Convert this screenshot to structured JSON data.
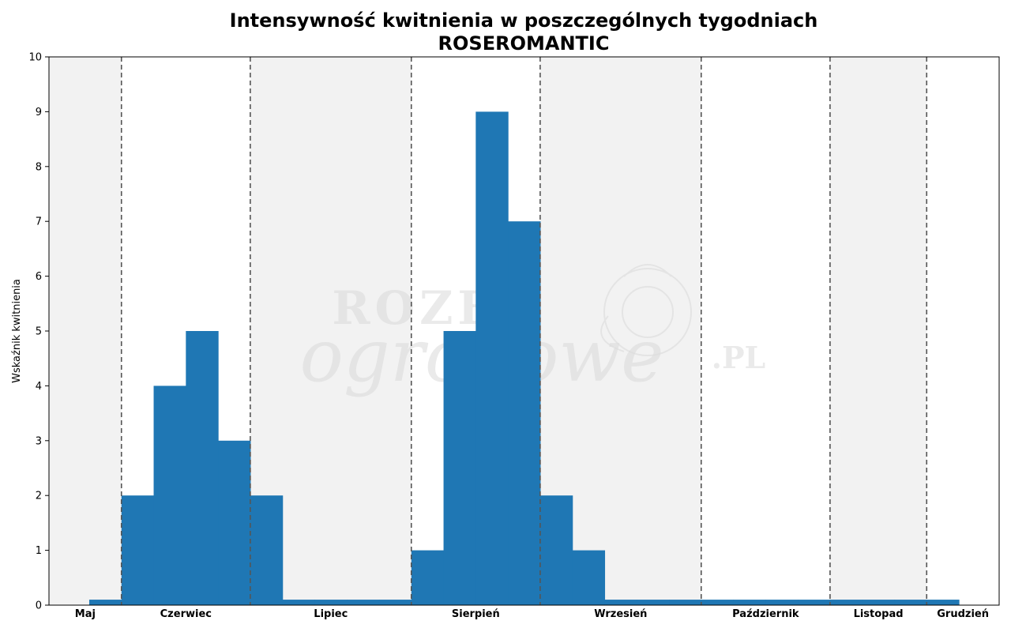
{
  "chart_data": {
    "type": "bar",
    "title_line1": "Intensywność kwitnienia w poszczególnych tygodniach",
    "title_line2": "ROSEROMANTIC",
    "xlabel": "",
    "ylabel": "Wskaźnik kwitnienia",
    "ylim": [
      0,
      10
    ],
    "yticks": [
      0,
      1,
      2,
      3,
      4,
      5,
      6,
      7,
      8,
      9,
      10
    ],
    "grid": false,
    "week_range": [
      0,
      29.5
    ],
    "months": [
      {
        "name": "Maj",
        "start_week": 0,
        "end_week": 2.25,
        "shaded": true
      },
      {
        "name": "Czerwiec",
        "start_week": 2.25,
        "end_week": 6.25,
        "shaded": false
      },
      {
        "name": "Lipiec",
        "start_week": 6.25,
        "end_week": 11.25,
        "shaded": true
      },
      {
        "name": "Sierpień",
        "start_week": 11.25,
        "end_week": 15.25,
        "shaded": false
      },
      {
        "name": "Wrzesień",
        "start_week": 15.25,
        "end_week": 20.25,
        "shaded": true
      },
      {
        "name": "Październik",
        "start_week": 20.25,
        "end_week": 24.25,
        "shaded": false
      },
      {
        "name": "Listopad",
        "start_week": 24.25,
        "end_week": 27.25,
        "shaded": true
      },
      {
        "name": "Grudzień",
        "start_week": 27.25,
        "end_week": 29.5,
        "shaded": false
      }
    ],
    "series": [
      {
        "week_start": 1.25,
        "week_width": 1,
        "values": [
          0.1,
          2,
          4,
          5,
          3,
          2,
          0.1,
          0.1,
          0.1,
          0.1,
          1,
          5,
          9,
          7,
          2,
          1,
          0.1,
          0.1,
          0.1,
          0.1,
          0.1,
          0.1,
          0.1,
          0.1,
          0.1,
          0.1,
          0.1
        ]
      }
    ],
    "colors": {
      "bar": "#1f77b4",
      "shade": "#f2f2f2",
      "divider": "#555555"
    }
  },
  "watermark": {
    "line1": "ROZE",
    "line2": "ogrodowe",
    "suffix": ".PL"
  }
}
